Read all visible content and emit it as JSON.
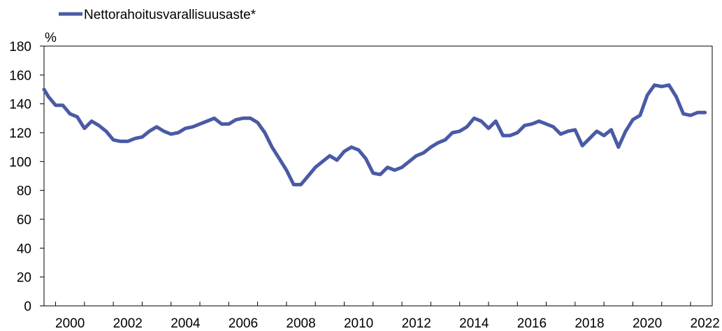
{
  "chart_data": {
    "type": "line",
    "title": "",
    "xlabel": "",
    "ylabel": "%",
    "ylim": [
      0,
      180
    ],
    "yticks": [
      0,
      20,
      40,
      60,
      80,
      100,
      120,
      140,
      160,
      180
    ],
    "xlim": [
      1999.6,
      2022.75
    ],
    "xticks": [
      2000,
      2002,
      2004,
      2006,
      2008,
      2010,
      2012,
      2014,
      2016,
      2018,
      2020,
      2022
    ],
    "xtick_labels": [
      "2000",
      "2002",
      "2004",
      "2006",
      "2008",
      "2010",
      "2012",
      "2014",
      "2016",
      "2018",
      "2020",
      "2022"
    ],
    "grid": false,
    "legend_position": "top-left",
    "colors": {
      "series": "#4a5aa5",
      "axis": "#000000",
      "frame": "#000000"
    },
    "series": [
      {
        "name": "Nettorahoitusvarallisuusaste*",
        "x": [
          1999.6,
          1999.75,
          2000.0,
          2000.25,
          2000.5,
          2000.75,
          2001.0,
          2001.25,
          2001.5,
          2001.75,
          2002.0,
          2002.25,
          2002.5,
          2002.75,
          2003.0,
          2003.25,
          2003.5,
          2003.75,
          2004.0,
          2004.25,
          2004.5,
          2004.75,
          2005.0,
          2005.25,
          2005.5,
          2005.75,
          2006.0,
          2006.25,
          2006.5,
          2006.75,
          2007.0,
          2007.25,
          2007.5,
          2007.75,
          2008.0,
          2008.25,
          2008.5,
          2008.75,
          2009.0,
          2009.25,
          2009.5,
          2009.75,
          2010.0,
          2010.25,
          2010.5,
          2010.75,
          2011.0,
          2011.25,
          2011.5,
          2011.75,
          2012.0,
          2012.25,
          2012.5,
          2012.75,
          2013.0,
          2013.25,
          2013.5,
          2013.75,
          2014.0,
          2014.25,
          2014.5,
          2014.75,
          2015.0,
          2015.25,
          2015.5,
          2015.75,
          2016.0,
          2016.25,
          2016.5,
          2016.75,
          2017.0,
          2017.25,
          2017.5,
          2017.75,
          2018.0,
          2018.25,
          2018.5,
          2018.75,
          2019.0,
          2019.25,
          2019.5,
          2019.75,
          2020.0,
          2020.25,
          2020.5,
          2020.75,
          2021.0,
          2021.25,
          2021.5,
          2021.75,
          2022.0,
          2022.25,
          2022.5
        ],
        "values": [
          150,
          145,
          139,
          139,
          133,
          131,
          123,
          128,
          125,
          121,
          115,
          114,
          114,
          116,
          117,
          121,
          124,
          121,
          119,
          120,
          123,
          124,
          126,
          128,
          130,
          126,
          126,
          129,
          130,
          130,
          127,
          120,
          110,
          102,
          94,
          84,
          84,
          90,
          96,
          100,
          104,
          101,
          107,
          110,
          108,
          102,
          92,
          91,
          96,
          94,
          96,
          100,
          104,
          106,
          110,
          113,
          115,
          120,
          121,
          124,
          130,
          128,
          123,
          128,
          118,
          118,
          120,
          125,
          126,
          128,
          126,
          124,
          119,
          121,
          122,
          111,
          116,
          121,
          118,
          122,
          110,
          121,
          129,
          132,
          146,
          153,
          152,
          153,
          145,
          133,
          132,
          134,
          134
        ]
      }
    ]
  }
}
